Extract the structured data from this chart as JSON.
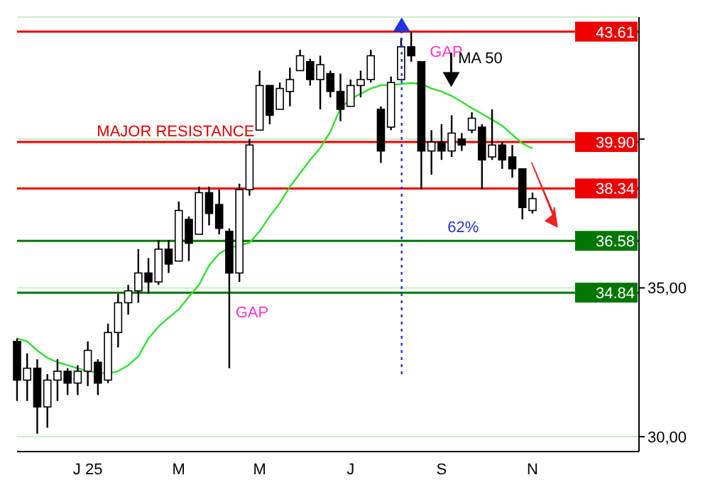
{
  "chart_data": {
    "type": "candlestick",
    "categories": [
      null,
      null,
      null,
      null,
      null,
      null,
      null,
      "J 25",
      null,
      null,
      null,
      null,
      null,
      null,
      null,
      null,
      "M",
      null,
      null,
      null,
      null,
      null,
      null,
      null,
      "M",
      null,
      null,
      null,
      null,
      null,
      null,
      null,
      null,
      "J",
      null,
      null,
      null,
      null,
      null,
      null,
      null,
      null,
      "S",
      null,
      null,
      null,
      null,
      null,
      null,
      null,
      null,
      "N"
    ],
    "ohlc": [
      [
        33.2,
        33.3,
        31.2,
        31.9
      ],
      [
        31.9,
        32.8,
        31.2,
        32.3
      ],
      [
        32.3,
        32.6,
        30.1,
        31.0
      ],
      [
        31.0,
        32.1,
        30.3,
        31.9
      ],
      [
        31.9,
        32.6,
        31.2,
        32.2
      ],
      [
        32.2,
        32.3,
        31.4,
        31.8
      ],
      [
        31.8,
        32.4,
        31.4,
        32.2
      ],
      [
        32.2,
        33.2,
        31.7,
        32.9
      ],
      [
        32.5,
        32.6,
        31.4,
        31.8
      ],
      [
        31.9,
        33.8,
        31.8,
        33.5
      ],
      [
        33.5,
        34.8,
        33.0,
        34.5
      ],
      [
        34.5,
        35.1,
        34.1,
        34.9
      ],
      [
        34.9,
        36.3,
        34.5,
        35.5
      ],
      [
        35.5,
        36.0,
        34.8,
        35.2
      ],
      [
        35.2,
        36.6,
        35.1,
        36.3
      ],
      [
        36.3,
        36.6,
        35.5,
        35.8
      ],
      [
        35.9,
        37.9,
        35.9,
        37.6
      ],
      [
        37.3,
        37.4,
        35.9,
        36.5
      ],
      [
        36.8,
        38.4,
        36.8,
        38.2
      ],
      [
        38.2,
        38.4,
        37.1,
        37.5
      ],
      [
        37.8,
        38.3,
        36.8,
        37.0
      ],
      [
        36.9,
        37.0,
        32.3,
        35.5
      ],
      [
        35.5,
        38.5,
        35.2,
        38.3
      ],
      [
        38.3,
        40.0,
        38.1,
        39.8
      ],
      [
        40.3,
        42.3,
        40.3,
        41.8
      ],
      [
        41.8,
        41.8,
        40.5,
        40.8
      ],
      [
        41.0,
        41.9,
        41.0,
        41.7
      ],
      [
        41.6,
        42.4,
        41.1,
        42.0
      ],
      [
        42.3,
        43.0,
        42.3,
        42.8
      ],
      [
        42.6,
        42.7,
        41.8,
        42.0
      ],
      [
        42.0,
        42.8,
        41.0,
        42.5
      ],
      [
        42.2,
        42.3,
        41.4,
        41.6
      ],
      [
        41.6,
        42.2,
        40.6,
        41.0
      ],
      [
        41.1,
        42.0,
        41.1,
        41.8
      ],
      [
        41.8,
        42.3,
        41.4,
        42.0
      ],
      [
        42.0,
        43.0,
        41.9,
        42.8
      ],
      [
        41.0,
        41.1,
        39.2,
        39.6
      ],
      [
        40.4,
        42.1,
        40.3,
        41.9
      ],
      [
        42.0,
        43.4,
        42.0,
        43.1
      ],
      [
        43.1,
        43.6,
        42.6,
        42.8
      ],
      [
        42.6,
        42.6,
        38.3,
        39.6
      ],
      [
        39.6,
        40.3,
        38.8,
        39.9
      ],
      [
        39.9,
        40.5,
        39.3,
        39.6
      ],
      [
        39.6,
        40.8,
        39.4,
        40.2
      ],
      [
        40.0,
        40.2,
        39.6,
        39.8
      ],
      [
        40.3,
        40.9,
        40.2,
        40.7
      ],
      [
        40.4,
        40.5,
        38.3,
        39.3
      ],
      [
        39.4,
        41.0,
        39.3,
        39.8
      ],
      [
        39.8,
        39.9,
        39.0,
        39.3
      ],
      [
        39.4,
        39.8,
        38.7,
        39.0
      ],
      [
        39.0,
        39.0,
        37.3,
        37.7
      ],
      [
        37.6,
        38.2,
        37.5,
        38.0
      ]
    ],
    "series": [
      {
        "name": "MA 50",
        "type": "line",
        "color": "#33dd33",
        "values": [
          33.3,
          33.2,
          32.9,
          32.65,
          32.5,
          32.4,
          32.3,
          32.2,
          32.15,
          32.12,
          32.2,
          32.4,
          32.7,
          33.3,
          33.7,
          34.0,
          34.28,
          34.7,
          35.1,
          35.75,
          36.15,
          36.35,
          36.42,
          36.52,
          36.9,
          37.4,
          37.85,
          38.4,
          38.85,
          39.3,
          39.7,
          40.25,
          41.04,
          41.35,
          41.52,
          41.7,
          41.81,
          41.81,
          41.85,
          41.88,
          41.85,
          41.7,
          41.6,
          41.45,
          41.25,
          41.04,
          40.85,
          40.65,
          40.45,
          40.15,
          39.85,
          39.68
        ]
      }
    ],
    "ylim": [
      29.5,
      44.1
    ],
    "yticks": [
      {
        "value": 30,
        "label": "30,00"
      },
      {
        "value": 35,
        "label": "35,00"
      },
      {
        "value": 40,
        "label": null
      }
    ],
    "grid": "y",
    "ref_lines": [
      {
        "axis": "y",
        "value": 43.61,
        "label": "43.61",
        "color": "#ee0000"
      },
      {
        "axis": "y",
        "value": 39.9,
        "label": "39.90",
        "color": "#ee0000"
      },
      {
        "axis": "y",
        "value": 38.34,
        "label": "38.34",
        "color": "#ee0000"
      },
      {
        "axis": "y",
        "value": 36.58,
        "label": "36.58",
        "color": "#007700"
      },
      {
        "axis": "y",
        "value": 34.84,
        "label": "34.84",
        "color": "#007700"
      }
    ],
    "annotations": [
      {
        "text": "MAJOR RESISTANCE",
        "y": 39.9
      },
      "GAP",
      "GAP",
      {
        "text": "62%",
        "y": 36.58
      }
    ]
  }
}
